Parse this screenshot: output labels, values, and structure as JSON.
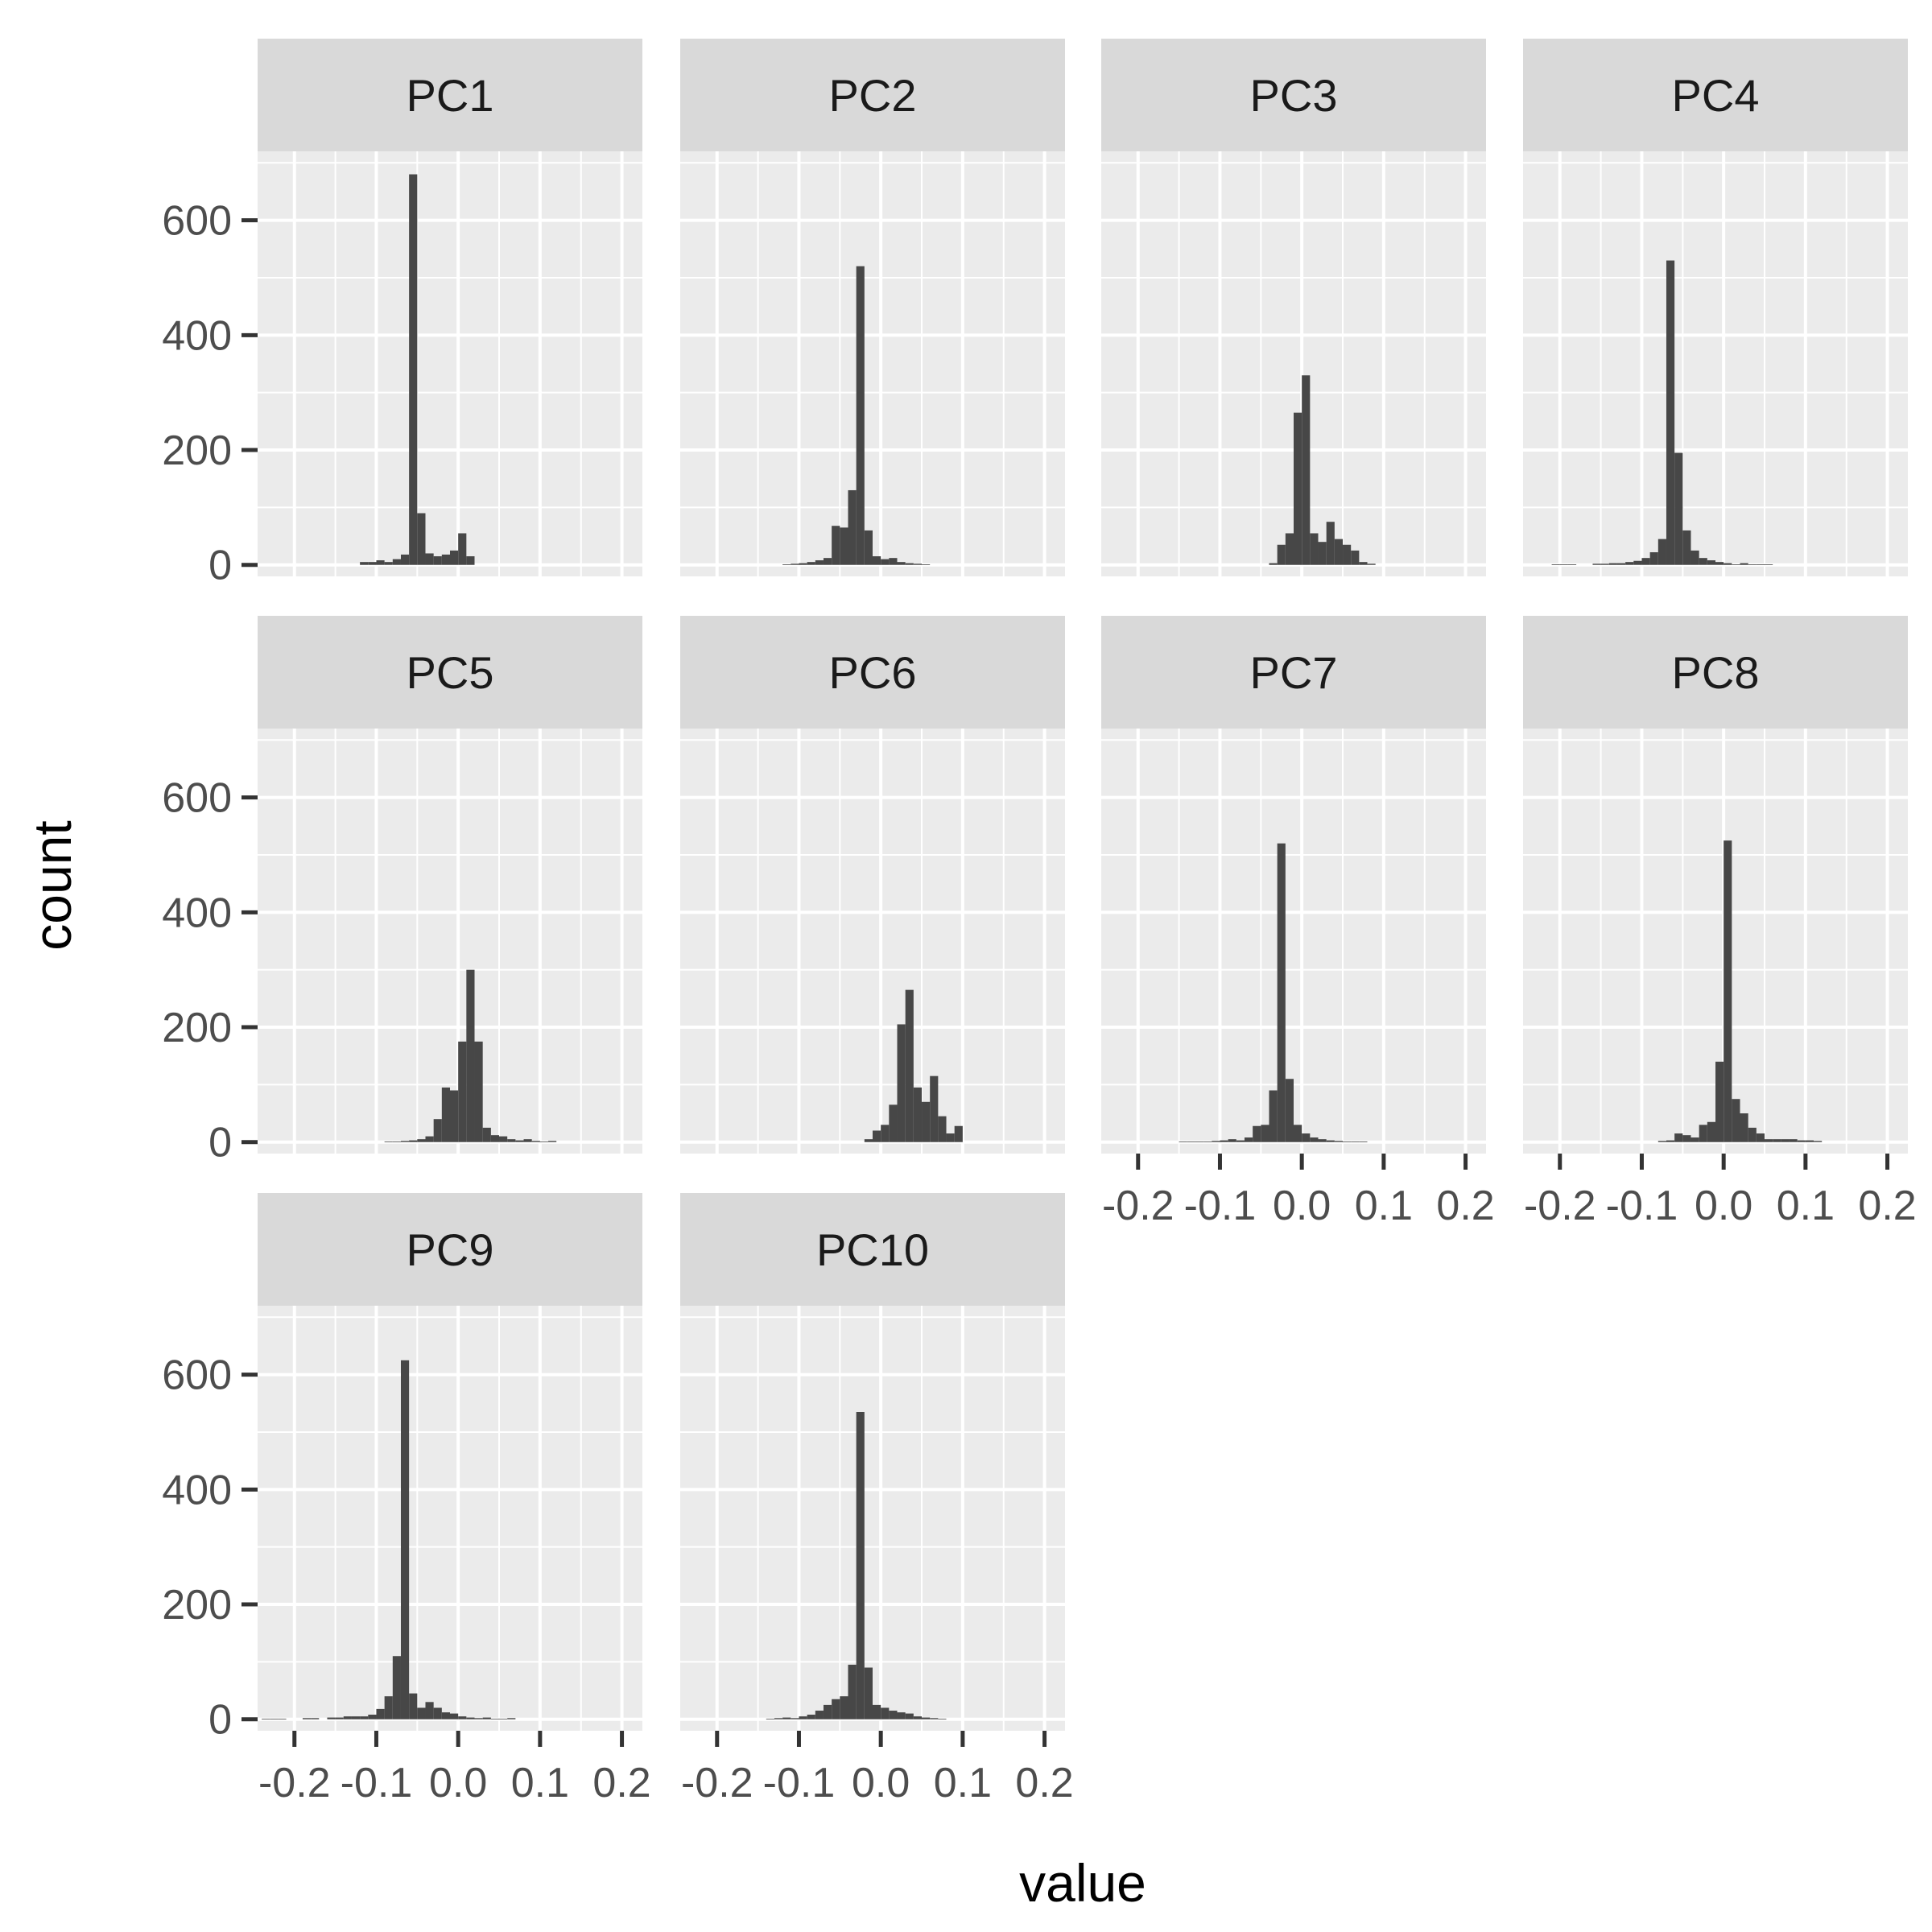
{
  "chart_data": {
    "type": "bar",
    "layout": "facet-grid",
    "xlabel": "value",
    "ylabel": "count",
    "xlim": [
      -0.245,
      0.225
    ],
    "ylim": [
      -20,
      720
    ],
    "xticks": [
      -0.2,
      -0.1,
      0.0,
      0.1,
      0.2
    ],
    "xtick_labels": [
      "-0.2",
      "-0.1",
      "0.0",
      "0.1",
      "0.2"
    ],
    "yticks": [
      0,
      200,
      400,
      600
    ],
    "ytick_labels": [
      "0",
      "200",
      "400",
      "600"
    ],
    "bin_start": -0.24,
    "bin_width": 0.01,
    "grid": true,
    "colors": {
      "bar": "#474747",
      "panel_bg": "#ebebeb",
      "strip_bg": "#d9d9d9",
      "grid": "#ffffff",
      "strip_text": "#1a1a1a",
      "tick": "#333333",
      "tick_label": "#4d4d4d",
      "axis_title": "#000000"
    },
    "panels": [
      {
        "label": "PC1",
        "counts": [
          0,
          0,
          0,
          0,
          0,
          0,
          0,
          0,
          0,
          0,
          0,
          0,
          5,
          5,
          8,
          5,
          10,
          18,
          680,
          90,
          20,
          15,
          18,
          25,
          55,
          15,
          0,
          0,
          0,
          0,
          0,
          0,
          0,
          0,
          0,
          0,
          0,
          0,
          0,
          0,
          0,
          0,
          0,
          0,
          0,
          0,
          0
        ]
      },
      {
        "label": "PC2",
        "counts": [
          0,
          0,
          0,
          0,
          0,
          0,
          0,
          0,
          0,
          0,
          0,
          0,
          1,
          2,
          3,
          5,
          8,
          12,
          68,
          65,
          130,
          520,
          60,
          15,
          10,
          12,
          5,
          3,
          2,
          1,
          0,
          0,
          0,
          0,
          0,
          0,
          0,
          0,
          0,
          0,
          0,
          0,
          0,
          0,
          0,
          0,
          0
        ]
      },
      {
        "label": "PC3",
        "counts": [
          0,
          0,
          0,
          0,
          0,
          0,
          0,
          0,
          0,
          0,
          0,
          0,
          0,
          0,
          0,
          0,
          0,
          0,
          0,
          0,
          3,
          35,
          55,
          265,
          330,
          55,
          40,
          75,
          45,
          35,
          25,
          5,
          2,
          0,
          0,
          0,
          0,
          0,
          0,
          0,
          0,
          0,
          0,
          0,
          0,
          0,
          0
        ]
      },
      {
        "label": "PC4",
        "counts": [
          0,
          0,
          0,
          1,
          1,
          1,
          0,
          0,
          2,
          2,
          3,
          3,
          5,
          7,
          12,
          22,
          45,
          530,
          195,
          60,
          25,
          12,
          8,
          5,
          3,
          1,
          3,
          1,
          1,
          1,
          0,
          0,
          0,
          0,
          0,
          0,
          0,
          0,
          0,
          0,
          0,
          0,
          0,
          0,
          0,
          0,
          0
        ]
      },
      {
        "label": "PC5",
        "counts": [
          0,
          0,
          0,
          0,
          0,
          0,
          0,
          0,
          0,
          0,
          0,
          0,
          0,
          0,
          0,
          1,
          1,
          2,
          3,
          5,
          10,
          40,
          95,
          90,
          175,
          300,
          175,
          25,
          12,
          10,
          5,
          3,
          5,
          2,
          1,
          2,
          0,
          0,
          0,
          0,
          0,
          0,
          0,
          0,
          0,
          0,
          0
        ]
      },
      {
        "label": "PC6",
        "counts": [
          0,
          0,
          0,
          0,
          0,
          0,
          0,
          0,
          0,
          0,
          0,
          0,
          0,
          0,
          0,
          0,
          0,
          0,
          0,
          0,
          0,
          0,
          5,
          20,
          30,
          65,
          205,
          265,
          95,
          70,
          115,
          45,
          15,
          28,
          0,
          0,
          0,
          0,
          0,
          0,
          0,
          0,
          0,
          0,
          0,
          0,
          0
        ]
      },
      {
        "label": "PC7",
        "counts": [
          0,
          0,
          0,
          0,
          0,
          0,
          0,
          0,
          0,
          1,
          1,
          1,
          1,
          2,
          3,
          5,
          3,
          8,
          28,
          30,
          90,
          520,
          110,
          30,
          15,
          8,
          5,
          3,
          2,
          1,
          1,
          1,
          0,
          0,
          0,
          0,
          0,
          0,
          0,
          0,
          0,
          0,
          0,
          0,
          0,
          0,
          0
        ]
      },
      {
        "label": "PC8",
        "counts": [
          0,
          0,
          0,
          0,
          0,
          0,
          0,
          0,
          0,
          0,
          0,
          0,
          0,
          0,
          0,
          0,
          2,
          3,
          15,
          12,
          8,
          30,
          35,
          140,
          525,
          75,
          50,
          25,
          15,
          5,
          5,
          5,
          5,
          3,
          3,
          2,
          0,
          0,
          0,
          0,
          0,
          0,
          0,
          0,
          0,
          0,
          0
        ]
      },
      {
        "label": "PC9",
        "counts": [
          1,
          1,
          1,
          0,
          0,
          2,
          2,
          0,
          3,
          3,
          5,
          5,
          5,
          8,
          18,
          40,
          110,
          625,
          45,
          20,
          30,
          20,
          12,
          10,
          5,
          3,
          2,
          3,
          1,
          1,
          2,
          0,
          0,
          0,
          0,
          0,
          0,
          0,
          0,
          0,
          0,
          0,
          0,
          0,
          0,
          0,
          0
        ]
      },
      {
        "label": "PC10",
        "counts": [
          0,
          0,
          0,
          0,
          0,
          0,
          0,
          0,
          0,
          0,
          1,
          2,
          3,
          2,
          5,
          8,
          15,
          25,
          35,
          40,
          95,
          535,
          90,
          25,
          20,
          15,
          12,
          10,
          5,
          3,
          2,
          1,
          0,
          0,
          0,
          0,
          0,
          0,
          0,
          0,
          0,
          0,
          0,
          0,
          0,
          0,
          0
        ]
      }
    ]
  }
}
